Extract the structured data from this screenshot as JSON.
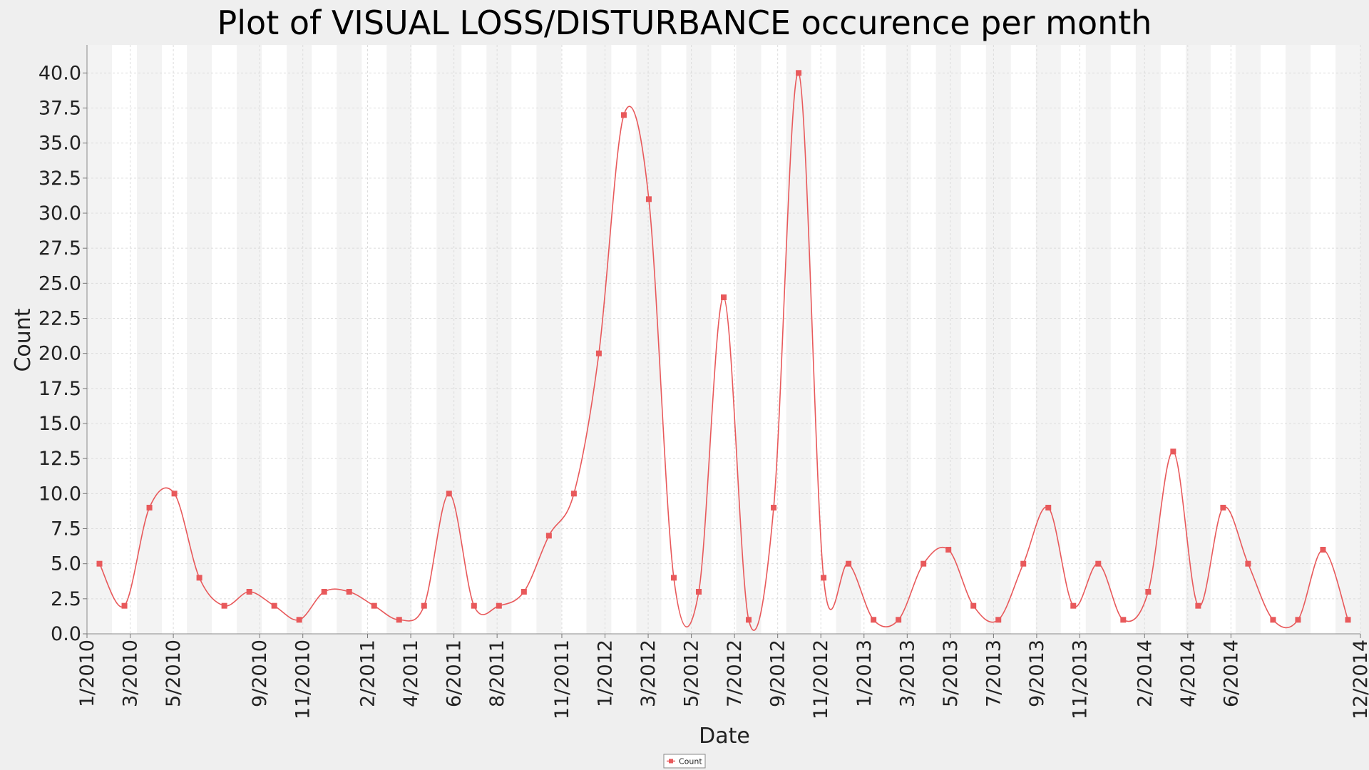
{
  "chart_data": {
    "type": "line",
    "title": "Plot of VISUAL LOSS/DISTURBANCE occurence per month",
    "xlabel": "Date",
    "ylabel": "Count",
    "ylim": [
      0,
      42
    ],
    "y_ticks": [
      "0.0",
      "2.5",
      "5.0",
      "7.5",
      "10.0",
      "12.5",
      "15.0",
      "17.5",
      "20.0",
      "22.5",
      "25.0",
      "27.5",
      "30.0",
      "32.5",
      "35.0",
      "37.5",
      "40.0"
    ],
    "x_tick_labels": [
      "1/2010",
      "3/2010",
      "5/2010",
      "9/2010",
      "11/2010",
      "2/2011",
      "4/2011",
      "6/2011",
      "8/2011",
      "11/2011",
      "1/2012",
      "3/2012",
      "5/2012",
      "7/2012",
      "9/2012",
      "11/2012",
      "1/2013",
      "3/2013",
      "5/2013",
      "7/2013",
      "9/2013",
      "11/2013",
      "2/2014",
      "4/2014",
      "6/2014",
      "12/2014"
    ],
    "grid": true,
    "legend": "bottom-center",
    "colors": {
      "series": "#e8595b",
      "background": "#efefef",
      "plot": "#ffffff",
      "band": "#f3f3f3",
      "grid": "#dcdcdc"
    },
    "series": [
      {
        "name": "Count",
        "values": [
          5,
          2,
          9,
          10,
          4,
          2,
          3,
          2,
          1,
          3,
          3,
          2,
          1,
          2,
          10,
          2,
          2,
          3,
          7,
          10,
          20,
          37,
          31,
          4,
          3,
          24,
          1,
          9,
          40,
          4,
          5,
          1,
          1,
          5,
          6,
          2,
          1,
          5,
          9,
          2,
          5,
          1,
          3,
          13,
          2,
          9,
          5,
          1,
          1,
          6,
          1
        ]
      }
    ]
  }
}
